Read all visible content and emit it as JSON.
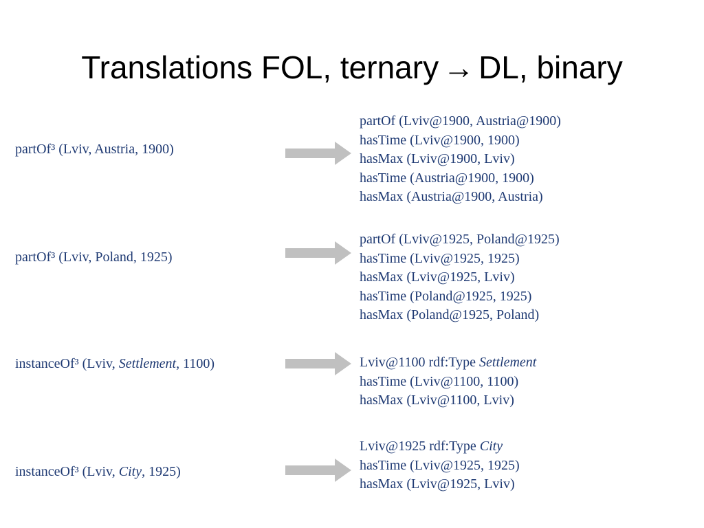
{
  "title": {
    "before": "Translations FOL, ternary",
    "arrow": "→",
    "after": "DL, binary"
  },
  "colors": {
    "text": "#1f3a73",
    "arrow": "#c0c0c0",
    "title": "#000000"
  },
  "rows": [
    {
      "left": {
        "pre": "partOf³ (Lviv, Austria, 1900)",
        "italic": "",
        "post": ""
      },
      "right": [
        {
          "text": "partOf (Lviv@1900, Austria@1900)",
          "italic": ""
        },
        {
          "text": "hasTime (Lviv@1900, 1900)",
          "italic": ""
        },
        {
          "text": "hasMax (Lviv@1900, Lviv)",
          "italic": ""
        },
        {
          "text": "hasTime (Austria@1900, 1900)",
          "italic": ""
        },
        {
          "text": "hasMax (Austria@1900, Austria)",
          "italic": ""
        }
      ]
    },
    {
      "left": {
        "pre": "partOf³ (Lviv, Poland, 1925)",
        "italic": "",
        "post": ""
      },
      "right": [
        {
          "text": "partOf (Lviv@1925, Poland@1925)",
          "italic": ""
        },
        {
          "text": "hasTime (Lviv@1925, 1925)",
          "italic": ""
        },
        {
          "text": "hasMax (Lviv@1925, Lviv)",
          "italic": ""
        },
        {
          "text": "hasTime (Poland@1925, 1925)",
          "italic": ""
        },
        {
          "text": "hasMax (Poland@1925, Poland)",
          "italic": ""
        }
      ]
    },
    {
      "left": {
        "pre": "instanceOf³ (Lviv, ",
        "italic": "Settlement",
        "post": ", 1100)"
      },
      "right": [
        {
          "text": "Lviv@1100 rdf:Type ",
          "italic": "Settlement"
        },
        {
          "text": "hasTime (Lviv@1100, 1100)",
          "italic": ""
        },
        {
          "text": "hasMax (Lviv@1100, Lviv)",
          "italic": ""
        }
      ]
    },
    {
      "left": {
        "pre": "instanceOf³ (Lviv, ",
        "italic": "City",
        "post": ", 1925)"
      },
      "right": [
        {
          "text": "Lviv@1925 rdf:Type ",
          "italic": "City"
        },
        {
          "text": "hasTime (Lviv@1925, 1925)",
          "italic": ""
        },
        {
          "text": "hasMax (Lviv@1925, Lviv)",
          "italic": ""
        }
      ]
    }
  ]
}
